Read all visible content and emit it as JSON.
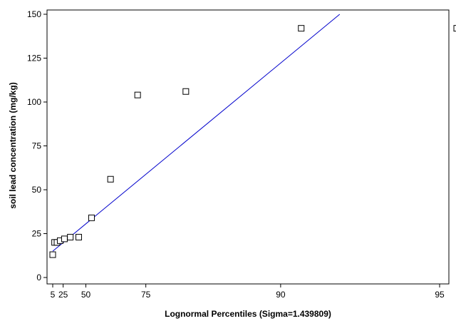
{
  "chart_data": {
    "type": "scatter",
    "title": "",
    "xlabel": "Lognormal Percentiles (Sigma=1.439809)",
    "ylabel": "soil lead concentration (mg/kg)",
    "x_axis_scale": "lognormal probability",
    "ylim": [
      0,
      150
    ],
    "y_ticks": [
      0,
      25,
      50,
      75,
      100,
      125,
      150
    ],
    "x_ticks": [
      5,
      25,
      50,
      75,
      90,
      95
    ],
    "grid": false,
    "legend": "none",
    "series": [
      {
        "type": "scatter",
        "marker": "open-square",
        "x": [
          5,
          9,
          14,
          20,
          27,
          35,
          44,
          54,
          64,
          73,
          82,
          91,
          95.3
        ],
        "y": [
          13,
          20,
          20,
          21,
          22,
          23,
          23,
          34,
          56,
          104,
          106,
          142,
          142
        ],
        "color": "#000000"
      },
      {
        "type": "line",
        "name_hidden": true,
        "x": [
          5,
          92.5
        ],
        "y": [
          15,
          150
        ],
        "color": "#0000cc"
      }
    ]
  }
}
